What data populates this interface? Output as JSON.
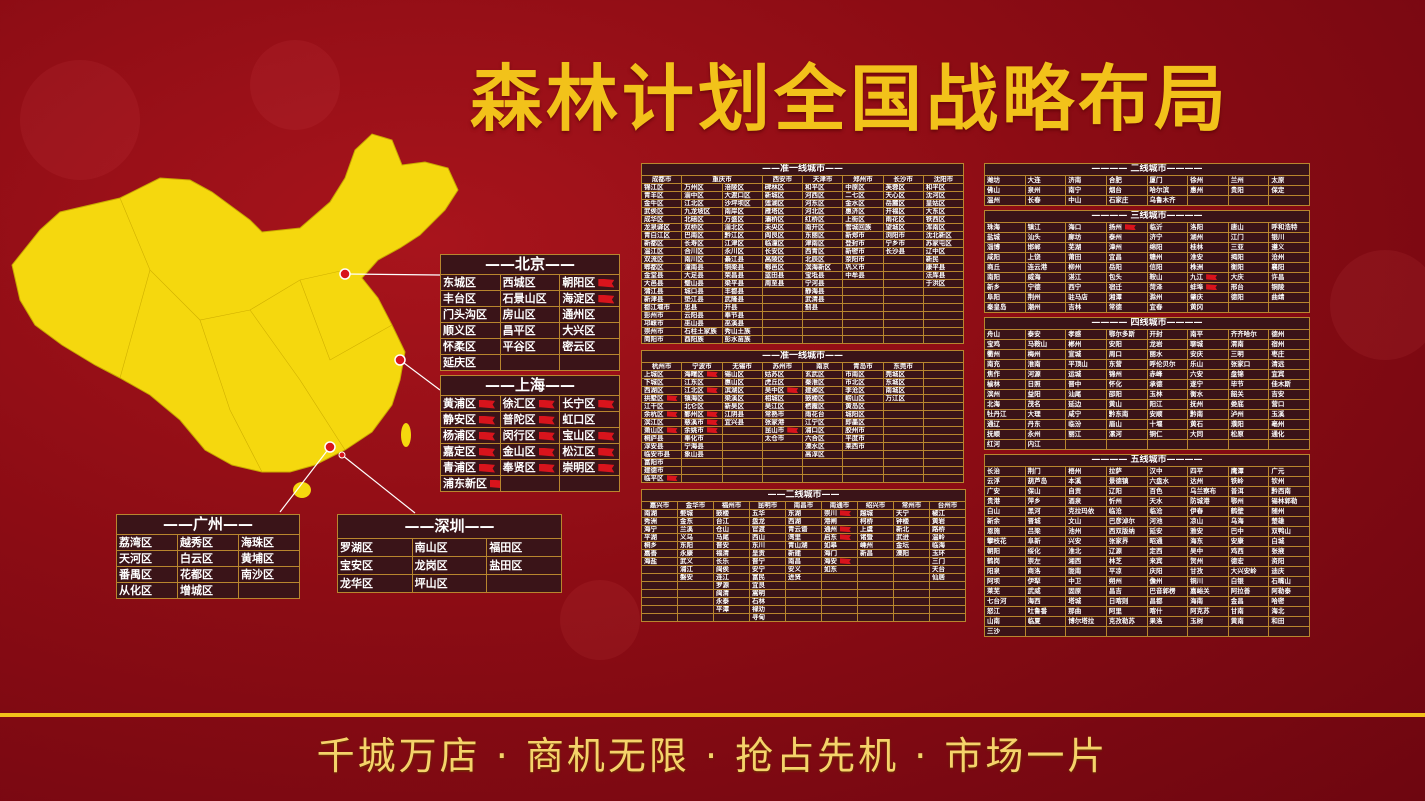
{
  "title": "森林计划全国战略布局",
  "slogan": "千城万店 · 商机无限 · 抢占先机 · 市场一片",
  "colors": {
    "accent": "#f2c21a",
    "cell_bg": "#3a1418",
    "border": "#b8862e",
    "background": "#8c0c14",
    "flag": "#d8141c"
  },
  "beijing": {
    "title": "北京",
    "rows": [
      [
        "东城区",
        "西城区",
        "朝阳区"
      ],
      [
        "丰台区",
        "石景山区",
        "海淀区"
      ],
      [
        "门头沟区",
        "房山区",
        "通州区"
      ],
      [
        "顺义区",
        "昌平区",
        "大兴区"
      ],
      [
        "怀柔区",
        "平谷区",
        "密云区"
      ],
      [
        "延庆区",
        "",
        ""
      ]
    ],
    "flagged": [
      "朝阳区",
      "海淀区"
    ]
  },
  "shanghai": {
    "title": "上海",
    "rows": [
      [
        "黄浦区",
        "徐汇区",
        "长宁区"
      ],
      [
        "静安区",
        "普陀区",
        "虹口区"
      ],
      [
        "杨浦区",
        "闵行区",
        "宝山区"
      ],
      [
        "嘉定区",
        "金山区",
        "松江区"
      ],
      [
        "青浦区",
        "奉贤区",
        "崇明区"
      ],
      [
        "浦东新区",
        "",
        ""
      ]
    ],
    "flagged": [
      "黄浦区",
      "徐汇区",
      "长宁区",
      "静安区",
      "普陀区",
      "杨浦区",
      "闵行区",
      "宝山区",
      "嘉定区",
      "金山区",
      "松江区",
      "青浦区",
      "奉贤区",
      "崇明区",
      "浦东新区"
    ]
  },
  "guangzhou": {
    "title": "广州",
    "rows": [
      [
        "荔湾区",
        "越秀区",
        "海珠区"
      ],
      [
        "天河区",
        "白云区",
        "黄埔区"
      ],
      [
        "番禺区",
        "花都区",
        "南沙区"
      ],
      [
        "从化区",
        "增城区",
        ""
      ]
    ],
    "flagged": []
  },
  "shenzhen": {
    "title": "深圳",
    "rows": [
      [
        "罗湖区",
        "南山区",
        "福田区"
      ],
      [
        "宝安区",
        "龙岗区",
        "盐田区"
      ],
      [
        "龙华区",
        "坪山区",
        ""
      ]
    ],
    "flagged": []
  },
  "quasi1_a": {
    "title": "准一线城市",
    "headers": [
      {
        "label": "成都市",
        "span": 1
      },
      {
        "label": "重庆市",
        "span": 2
      },
      {
        "label": "西安市",
        "span": 1
      },
      {
        "label": "天津市",
        "span": 1
      },
      {
        "label": "郑州市",
        "span": 1
      },
      {
        "label": "长沙市",
        "span": 1
      },
      {
        "label": "沈阳市",
        "span": 1
      }
    ],
    "columns": [
      [
        "锦江区",
        "青羊区",
        "金牛区",
        "武侯区",
        "成华区",
        "龙泉驿区",
        "青白江区",
        "新都区",
        "温江区",
        "双流区",
        "郫都区",
        "金堂县",
        "大邑县",
        "蒲江县",
        "新津县",
        "都江堰市",
        "彭州市",
        "邛崃市",
        "崇州市",
        "简阳市"
      ],
      [
        "万州区",
        "渝中区",
        "江北区",
        "九龙坡区",
        "北碚区",
        "双桥区",
        "巴南区",
        "长寿区",
        "合川区",
        "南川区",
        "潼南县",
        "大足县",
        "璧山县",
        "城口县",
        "垫江县",
        "忠县",
        "云阳县",
        "巫山县",
        "石柱土家族",
        "酉阳族"
      ],
      [
        "涪陵区",
        "大渡口区",
        "沙坪坝区",
        "南岸区",
        "万盛区",
        "渝北区",
        "黔江区",
        "江津区",
        "永川区",
        "綦江县",
        "铜梁县",
        "荣昌县",
        "梁平县",
        "丰都县",
        "武隆县",
        "开县",
        "奉节县",
        "巫溪县",
        "秀山土族",
        "彭水苗族"
      ],
      [
        "碑林区",
        "新城区",
        "莲湖区",
        "雁塔区",
        "灞桥区",
        "未央区",
        "阎良区",
        "临潼区",
        "长安区",
        "高陵区",
        "鄠邑区",
        "蓝田县",
        "周至县"
      ],
      [
        "和平区",
        "河西区",
        "河东区",
        "河北区",
        "红桥区",
        "南开区",
        "东丽区",
        "津南区",
        "西青区",
        "北辰区",
        "滨海新区",
        "宝坻县",
        "宁河县",
        "静海县",
        "武清县",
        "蓟县"
      ],
      [
        "中原区",
        "二七区",
        "金水区",
        "惠济区",
        "上街区",
        "管城回族",
        "新郑市",
        "登封市",
        "新密市",
        "荥阳市",
        "巩义市",
        "中牟县"
      ],
      [
        "芙蓉区",
        "天心区",
        "岳麓区",
        "开福区",
        "雨花区",
        "望城区",
        "浏阳市",
        "宁乡市",
        "长沙县"
      ],
      [
        "和平区",
        "沈河区",
        "皇姑区",
        "大东区",
        "铁西区",
        "浑南区",
        "沈北新区",
        "苏家屯区",
        "辽中区",
        "新民",
        "康平县",
        "法库县",
        "于洪区"
      ]
    ],
    "flagged": []
  },
  "quasi1_b": {
    "title": "准一线城市",
    "headers": [
      {
        "label": "杭州市",
        "span": 1
      },
      {
        "label": "宁波市",
        "span": 1
      },
      {
        "label": "无锡市",
        "span": 1
      },
      {
        "label": "苏州市",
        "span": 1
      },
      {
        "label": "南京",
        "span": 1
      },
      {
        "label": "青岛市",
        "span": 1
      },
      {
        "label": "东莞市",
        "span": 1
      },
      {
        "label": "",
        "span": 1
      }
    ],
    "columns": [
      [
        "上城区",
        "下城区",
        "西湖区",
        "拱墅区",
        "江干区",
        "余杭区",
        "滨江区",
        "萧山区",
        "桐庐县",
        "淳安县",
        "临安市县",
        "富阳市",
        "建德市",
        "临平区"
      ],
      [
        "海曙区",
        "江东区",
        "江北区",
        "镇海区",
        "北仑区",
        "鄞州区",
        "慈溪市",
        "余姚市",
        "奉化市",
        "宁海县",
        "象山县"
      ],
      [
        "锡山区",
        "惠山区",
        "滨湖区",
        "梁溪区",
        "新吴区",
        "江阴县",
        "宜兴县"
      ],
      [
        "姑苏区",
        "虎丘区",
        "吴中区",
        "相城区",
        "吴江区",
        "常熟市",
        "张家港",
        "昆山市",
        "太仓市"
      ],
      [
        "玄武区",
        "秦淮区",
        "建邺区",
        "鼓楼区",
        "栖霞区",
        "雨花台",
        "江宁区",
        "浦口区",
        "六合区",
        "溧水区",
        "高淳区"
      ],
      [
        "市南区",
        "市北区",
        "李沧区",
        "崂山区",
        "黄岛区",
        "城阳区",
        "即墨区",
        "胶州市",
        "平度市",
        "莱西市"
      ],
      [
        "莞城区",
        "东城区",
        "南城区",
        "万江区"
      ],
      []
    ],
    "flagged": [
      "拱墅区",
      "余杭区",
      "萧山区",
      "临平区",
      "海曙区",
      "江北区",
      "鄞州区",
      "慈溪市",
      "余姚市",
      "吴中区",
      "昆山市"
    ]
  },
  "tier2_mid": {
    "title": "二线城市",
    "headers": [
      {
        "label": "嘉兴市",
        "span": 1
      },
      {
        "label": "金华市",
        "span": 1
      },
      {
        "label": "福州市",
        "span": 1
      },
      {
        "label": "昆明市",
        "span": 1
      },
      {
        "label": "南昌市",
        "span": 1
      },
      {
        "label": "南通市",
        "span": 1
      },
      {
        "label": "绍兴市",
        "span": 1
      },
      {
        "label": "常州市",
        "span": 1
      },
      {
        "label": "台州市",
        "span": 1
      }
    ],
    "columns": [
      [
        "南湖",
        "秀洲",
        "海宁",
        "平湖",
        "桐乡",
        "嘉善",
        "海盐"
      ],
      [
        "婺城",
        "金东",
        "兰溪",
        "义乌",
        "东阳",
        "永康",
        "武义",
        "浦江",
        "磐安"
      ],
      [
        "鼓楼",
        "台江",
        "仓山",
        "马尾",
        "晋安",
        "福清",
        "长乐",
        "闽侯",
        "连江",
        "罗源",
        "闽清",
        "永泰",
        "平潭"
      ],
      [
        "五华",
        "盘龙",
        "官渡",
        "西山",
        "东川",
        "呈贡",
        "晋宁",
        "安宁",
        "富民",
        "宜良",
        "嵩明",
        "石林",
        "禄劝",
        "寻甸"
      ],
      [
        "东湖",
        "西湖",
        "青云谱",
        "湾里",
        "青山湖",
        "新建",
        "南昌",
        "安义",
        "进贤"
      ],
      [
        "崇川",
        "港闸",
        "通州",
        "启东",
        "如皋",
        "海门",
        "海安",
        "如东"
      ],
      [
        "越城",
        "柯桥",
        "上虞",
        "诸暨",
        "嵊州",
        "新昌"
      ],
      [
        "天宁",
        "钟楼",
        "新北",
        "武进",
        "金坛",
        "溧阳"
      ],
      [
        "椒江",
        "黄岩",
        "路桥",
        "温岭",
        "临海",
        "玉环",
        "三门",
        "天台",
        "仙居"
      ]
    ],
    "flagged": [
      "崇川",
      "通州",
      "启东",
      "海安"
    ]
  },
  "tier2": {
    "title": "二线城市",
    "rows": [
      [
        "潍坊",
        "大连",
        "济南",
        "合肥",
        "厦门",
        "徐州",
        "兰州",
        "太原"
      ],
      [
        "佛山",
        "泉州",
        "南宁",
        "烟台",
        "哈尔滨",
        "惠州",
        "贵阳",
        "保定"
      ],
      [
        "温州",
        "长春",
        "中山",
        "石家庄",
        "乌鲁木齐",
        "",
        "",
        ""
      ]
    ],
    "flagged": []
  },
  "tier3": {
    "title": "三线城市",
    "rows": [
      [
        "珠海",
        "镇江",
        "海口",
        "扬州",
        "临沂",
        "洛阳",
        "唐山",
        "呼和浩特"
      ],
      [
        "盐城",
        "汕头",
        "廊坊",
        "泰州",
        "济宁",
        "湖州",
        "江门",
        "银川"
      ],
      [
        "淄博",
        "邯郸",
        "芜湖",
        "漳州",
        "绵阳",
        "桂林",
        "三亚",
        "遵义"
      ],
      [
        "咸阳",
        "上饶",
        "莆田",
        "宜昌",
        "赣州",
        "淮安",
        "揭阳",
        "沧州"
      ],
      [
        "商丘",
        "连云港",
        "柳州",
        "岳阳",
        "信阳",
        "株洲",
        "衡阳",
        "襄阳"
      ],
      [
        "南阳",
        "威海",
        "湛江",
        "包头",
        "鞍山",
        "九江",
        "大庆",
        "许昌"
      ],
      [
        "新乡",
        "宁德",
        "西宁",
        "宿迁",
        "菏泽",
        "蚌埠",
        "邢台",
        "铜陵"
      ],
      [
        "阜阳",
        "荆州",
        "驻马店",
        "湘潭",
        "滁州",
        "肇庆",
        "德阳",
        "曲靖"
      ],
      [
        "秦皇岛",
        "潮州",
        "吉林",
        "常德",
        "宜春",
        "黄冈",
        "",
        ""
      ]
    ],
    "flagged": [
      "扬州",
      "九江",
      "蚌埠"
    ]
  },
  "tier4": {
    "title": "四线城市",
    "rows": [
      [
        "舟山",
        "泰安",
        "孝感",
        "鄂尔多斯",
        "开封",
        "南平",
        "齐齐哈尔",
        "德州"
      ],
      [
        "宝鸡",
        "马鞍山",
        "郴州",
        "安阳",
        "龙岩",
        "聊城",
        "渭南",
        "宿州"
      ],
      [
        "衢州",
        "梅州",
        "宣城",
        "周口",
        "丽水",
        "安庆",
        "三明",
        "枣庄"
      ],
      [
        "南充",
        "淮南",
        "平顶山",
        "东营",
        "呼伦贝尔",
        "乐山",
        "张家口",
        "清远"
      ],
      [
        "焦作",
        "河源",
        "运城",
        "锦州",
        "赤峰",
        "六安",
        "盘锦",
        "宜宾"
      ],
      [
        "榆林",
        "日照",
        "晋中",
        "怀化",
        "承德",
        "遂宁",
        "毕节",
        "佳木斯"
      ],
      [
        "滨州",
        "益阳",
        "汕尾",
        "邵阳",
        "玉林",
        "衡水",
        "韶关",
        "吉安"
      ],
      [
        "北海",
        "茂名",
        "延边",
        "黄山",
        "阳江",
        "抚州",
        "娄底",
        "营口"
      ],
      [
        "牡丹江",
        "大理",
        "咸宁",
        "黔东南",
        "安顺",
        "黔南",
        "泸州",
        "玉溪"
      ],
      [
        "通辽",
        "丹东",
        "临汾",
        "眉山",
        "十堰",
        "黄石",
        "濮阳",
        "亳州"
      ],
      [
        "抚顺",
        "永州",
        "丽江",
        "漯河",
        "铜仁",
        "大同",
        "松原",
        "通化"
      ],
      [
        "红河",
        "内江",
        "",
        "",
        "",
        "",
        "",
        ""
      ]
    ],
    "flagged": []
  },
  "tier5": {
    "title": "五线城市",
    "rows": [
      [
        "长治",
        "荆门",
        "梧州",
        "拉萨",
        "汉中",
        "四平",
        "鹰潭",
        "广元"
      ],
      [
        "云浮",
        "葫芦岛",
        "本溪",
        "景德镇",
        "六盘水",
        "达州",
        "铁岭",
        "钦州"
      ],
      [
        "广安",
        "保山",
        "自贡",
        "辽阳",
        "百色",
        "乌兰察布",
        "普洱",
        "黔西南"
      ],
      [
        "贵港",
        "萍乡",
        "酒泉",
        "忻州",
        "天水",
        "防城港",
        "鄂州",
        "锡林郭勒"
      ],
      [
        "白山",
        "黑河",
        "克拉玛依",
        "临沧",
        "临沧",
        "伊春",
        "鹤壁",
        "随州"
      ],
      [
        "新余",
        "晋城",
        "文山",
        "巴彦淖尔",
        "河池",
        "凉山",
        "乌海",
        "楚雄"
      ],
      [
        "恩施",
        "吕梁",
        "池州",
        "西双版纳",
        "延安",
        "雅安",
        "巴中",
        "双鸭山"
      ],
      [
        "攀枝花",
        "阜新",
        "兴安",
        "张家界",
        "昭通",
        "海东",
        "安康",
        "白城"
      ],
      [
        "朝阳",
        "绥化",
        "淮北",
        "辽源",
        "定西",
        "吴中",
        "鸡西",
        "张掖"
      ],
      [
        "鹤岗",
        "崇左",
        "湘西",
        "林芝",
        "来宾",
        "贺州",
        "德宏",
        "资阳"
      ],
      [
        "阳泉",
        "商洛",
        "陇南",
        "平凉",
        "庆阳",
        "甘孜",
        "大兴安岭",
        "迪庆"
      ],
      [
        "阿坝",
        "伊犁",
        "中卫",
        "朔州",
        "儋州",
        "铜川",
        "白银",
        "石嘴山"
      ],
      [
        "莱芜",
        "武威",
        "固原",
        "昌吉",
        "巴音郭楞",
        "嘉峪关",
        "阿拉善",
        "阿勒泰"
      ],
      [
        "七台河",
        "海西",
        "塔城",
        "日喀则",
        "昌都",
        "海南",
        "金昌",
        "哈密"
      ],
      [
        "怒江",
        "吐鲁番",
        "那曲",
        "阿里",
        "喀什",
        "阿克苏",
        "甘南",
        "海北"
      ],
      [
        "山南",
        "临夏",
        "博尔塔拉",
        "克孜勒苏",
        "果洛",
        "玉树",
        "黄南",
        "和田"
      ],
      [
        "三沙",
        "",
        "",
        "",
        "",
        "",
        "",
        ""
      ]
    ],
    "flagged": []
  }
}
